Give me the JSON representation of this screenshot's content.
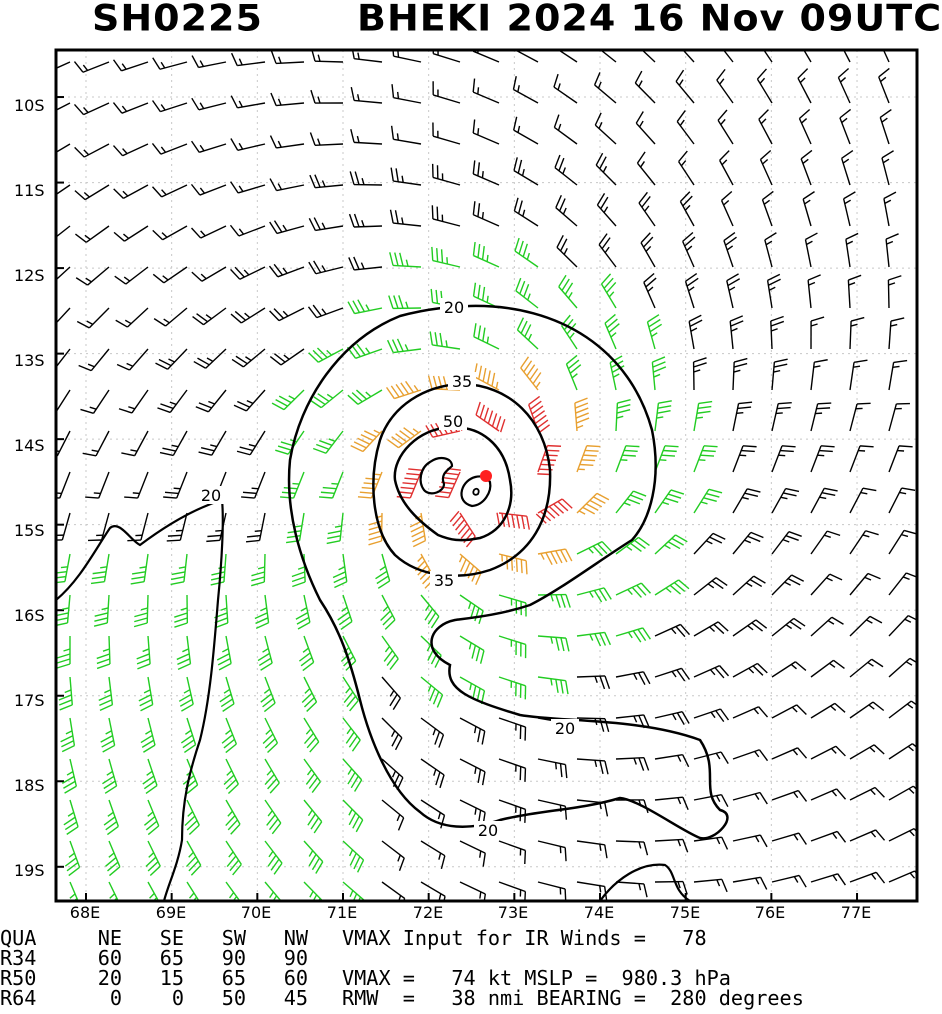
{
  "header": {
    "storm_id": "SH0225",
    "storm_title": "BHEKI 2024 16 Nov 09UTC"
  },
  "map": {
    "lat_labels": [
      "10S",
      "11S",
      "12S",
      "13S",
      "14S",
      "15S",
      "16S",
      "17S",
      "18S",
      "19S"
    ],
    "lon_labels": [
      "68E",
      "69E",
      "70E",
      "71E",
      "72E",
      "73E",
      "74E",
      "75E",
      "76E",
      "77E"
    ],
    "contour_labels": [
      "20",
      "35",
      "50",
      "35",
      "20",
      "20",
      "20"
    ],
    "center": {
      "lat": "14.4S",
      "lon": "72.7E"
    },
    "colors": {
      "below_34kt": "#000000",
      "34_to_49kt": "#22cc22",
      "50_to_63kt": "#e8a030",
      "64kt_plus": "#e03030",
      "center_marker": "#ff2020"
    }
  },
  "table": {
    "header": [
      "QUA",
      "NE",
      "SE",
      "SW",
      "NW"
    ],
    "rows": [
      {
        "label": "R34",
        "values": [
          "60",
          "65",
          "90",
          "90"
        ]
      },
      {
        "label": "R50",
        "values": [
          "20",
          "15",
          "65",
          "60"
        ]
      },
      {
        "label": "R64",
        "values": [
          "0",
          "0",
          "50",
          "45"
        ]
      }
    ]
  },
  "stats": {
    "line1": "VMAX Input for IR Winds =   78",
    "line2": "VMAX =   74 kt MSLP =  980.3 hPa",
    "line3": "RMW  =   38 nmi BEARING =  280 degrees"
  }
}
